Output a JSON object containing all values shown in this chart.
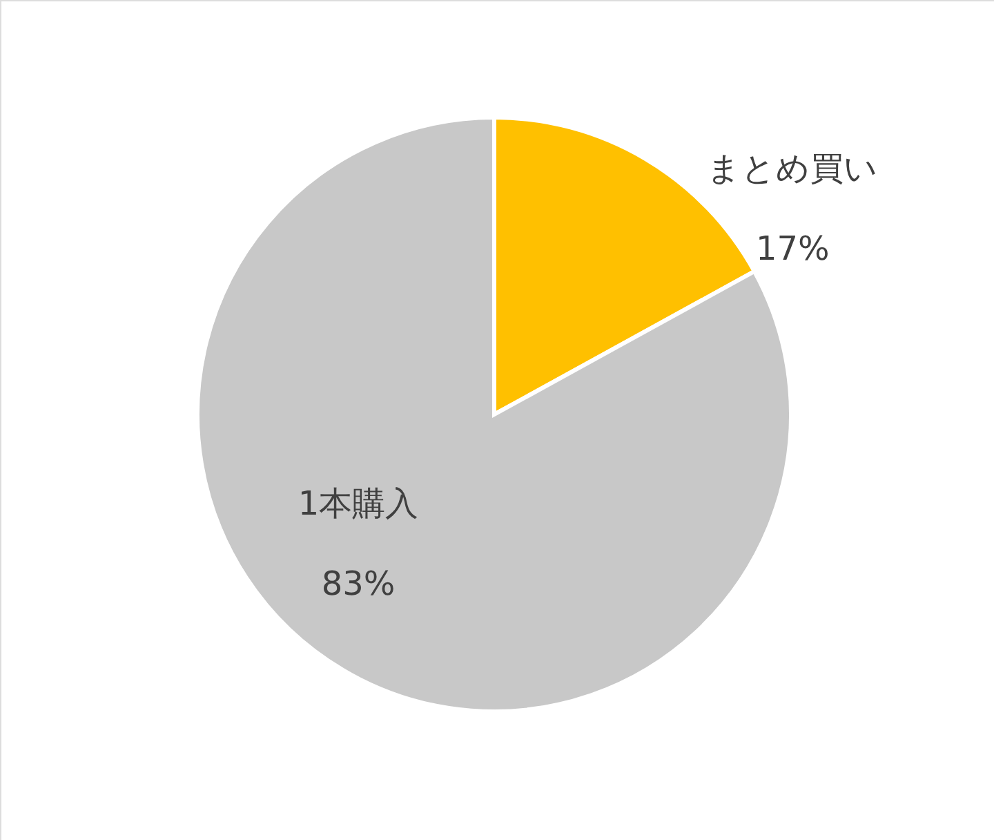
{
  "chart_data": {
    "type": "pie",
    "categories": [
      "まとめ買い",
      "1本購入"
    ],
    "values": [
      17,
      83
    ],
    "colors": [
      "#ffc000",
      "#c8c8c8"
    ],
    "value_labels": [
      "17%",
      "83%"
    ]
  }
}
